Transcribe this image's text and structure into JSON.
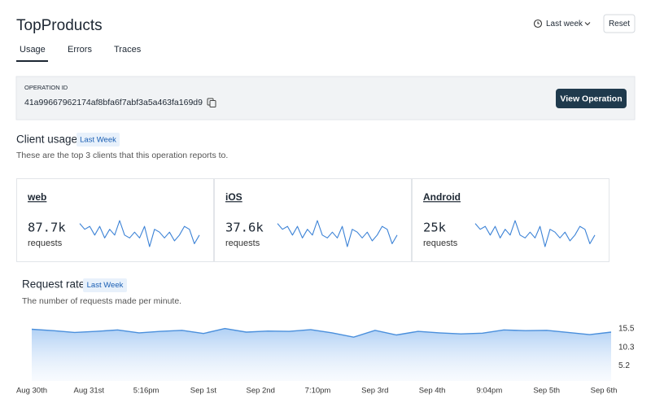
{
  "header": {
    "title": "TopProducts",
    "date_range": "Last week",
    "reset": "Reset"
  },
  "tabs": [
    "Usage",
    "Errors",
    "Traces"
  ],
  "operation": {
    "label": "OPERATION ID",
    "id": "41a99667962174af8bfa6f7abf3a5a463fa169d9",
    "button": "View Operation"
  },
  "client_usage": {
    "title": "Client usage",
    "badge": "Last Week",
    "subtitle": "These are the top 3 clients that this operation reports to.",
    "clients": [
      {
        "name": "web",
        "value": "87.7k",
        "unit": "requests",
        "sparkline": [
          8,
          6,
          7,
          4,
          7,
          3,
          6,
          4,
          9,
          4,
          3,
          5,
          3,
          7,
          0,
          6,
          5,
          3,
          5,
          2,
          4,
          7,
          6,
          1,
          4
        ]
      },
      {
        "name": "iOS",
        "value": "37.6k",
        "unit": "requests",
        "sparkline": [
          8,
          6,
          7,
          4,
          7,
          3,
          6,
          4,
          9,
          4,
          3,
          5,
          3,
          7,
          0,
          6,
          5,
          3,
          5,
          2,
          4,
          7,
          6,
          1,
          4
        ]
      },
      {
        "name": "Android",
        "value": "25k",
        "unit": "requests",
        "sparkline": [
          8,
          6,
          7,
          4,
          7,
          3,
          6,
          4,
          9,
          4,
          3,
          5,
          3,
          7,
          0,
          6,
          5,
          3,
          5,
          2,
          4,
          7,
          6,
          1,
          4
        ]
      }
    ]
  },
  "request_rate": {
    "title": "Request rate",
    "badge": "Last Week",
    "subtitle": "The number of requests made per minute.",
    "chart": {
      "type": "area",
      "color": "#4a8fdc",
      "x_labels": [
        "Aug 30th",
        "Aug 31st",
        "5:16pm",
        "Sep 1st",
        "Sep 2nd",
        "7:10pm",
        "Sep 3rd",
        "Sep 4th",
        "9:04pm",
        "Sep 5th",
        "Sep 6th"
      ],
      "values": [
        15.4,
        15.0,
        14.5,
        14.8,
        15.2,
        14.4,
        14.8,
        15.1,
        14.2,
        15.6,
        14.6,
        14.9,
        14.8,
        15.3,
        14.4,
        13.2,
        15.1,
        13.8,
        14.8,
        14.4,
        14.1,
        14.3,
        15.2,
        15.0,
        15.1,
        14.5,
        13.9,
        14.6
      ],
      "ylim": [
        1,
        16.5
      ],
      "yticks": [
        15.5,
        10.3,
        5.2
      ]
    }
  }
}
